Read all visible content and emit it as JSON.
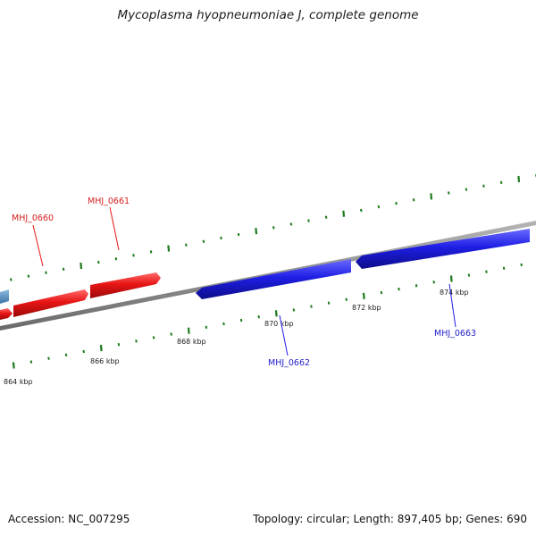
{
  "title": "Mycoplasma hyopneumoniae J, complete genome",
  "footer": {
    "accession": "Accession: NC_007295",
    "summary": "Topology: circular; Length: 897,405 bp; Genes: 690"
  },
  "colors": {
    "forward_gene": "#e81515",
    "reverse_gene": "#1f1fe6",
    "other_gene": "#4a8bc2",
    "tick": "#1c7a1c",
    "backbone": "#8c8c8c"
  },
  "ticks": [
    {
      "kbp": 864,
      "label": "864 kbp"
    },
    {
      "kbp": 866,
      "label": "866 kbp"
    },
    {
      "kbp": 868,
      "label": "868 kbp"
    },
    {
      "kbp": 870,
      "label": "870 kbp"
    },
    {
      "kbp": 872,
      "label": "872 kbp"
    },
    {
      "kbp": 874,
      "label": "874 kbp"
    }
  ],
  "genes": [
    {
      "name": "MHJ_0660",
      "strand": "+"
    },
    {
      "name": "MHJ_0661",
      "strand": "+"
    },
    {
      "name": "MHJ_0662",
      "strand": "-"
    },
    {
      "name": "MHJ_0663",
      "strand": "-"
    }
  ]
}
